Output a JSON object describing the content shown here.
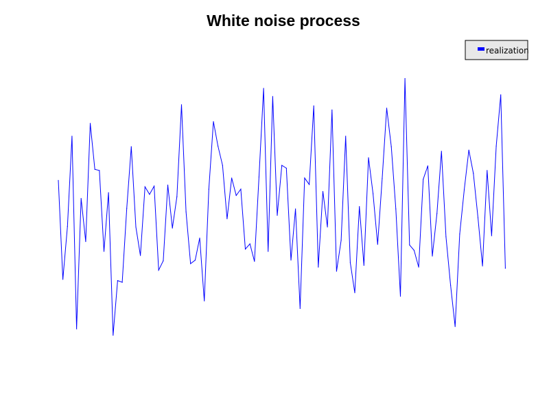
{
  "chart_data": {
    "type": "line",
    "title": "White noise process",
    "xlabel": "",
    "ylabel": "",
    "grid": false,
    "legend_position": "top-right",
    "axes_visible": false,
    "xlim": [
      0,
      99
    ],
    "ylim": [
      -3,
      3
    ],
    "series": [
      {
        "name": "realization",
        "color": "#0000ff",
        "values": [
          0.49,
          -1.21,
          -0.3,
          1.25,
          -2.06,
          0.18,
          -0.56,
          1.47,
          0.68,
          0.66,
          -0.73,
          0.28,
          -2.17,
          -1.23,
          -1.26,
          0.01,
          1.07,
          -0.31,
          -0.8,
          0.38,
          0.25,
          0.39,
          -1.05,
          -0.89,
          0.41,
          -0.33,
          0.21,
          1.79,
          -0.05,
          -0.94,
          -0.88,
          -0.5,
          -1.58,
          0.34,
          1.5,
          1.08,
          0.75,
          -0.17,
          0.53,
          0.23,
          0.34,
          -0.69,
          -0.6,
          -0.9,
          0.55,
          2.07,
          -0.73,
          1.93,
          -0.11,
          0.75,
          0.7,
          -0.88,
          0.0,
          -1.71,
          0.53,
          0.42,
          1.77,
          -1.0,
          0.3,
          -0.31,
          1.7,
          -1.07,
          -0.54,
          1.25,
          -0.92,
          -1.44,
          0.04,
          -0.97,
          0.88,
          0.26,
          -0.61,
          0.52,
          1.73,
          1.07,
          0.0,
          -1.5,
          2.24,
          -0.62,
          -0.71,
          -1.0,
          0.51,
          0.74,
          -0.81,
          -0.08,
          0.99,
          -0.48,
          -1.31,
          -2.02,
          -0.43,
          0.33,
          1.01,
          0.61,
          -0.15,
          -0.98,
          0.66,
          -0.46,
          1.08,
          1.96,
          -1.02
        ]
      }
    ]
  }
}
